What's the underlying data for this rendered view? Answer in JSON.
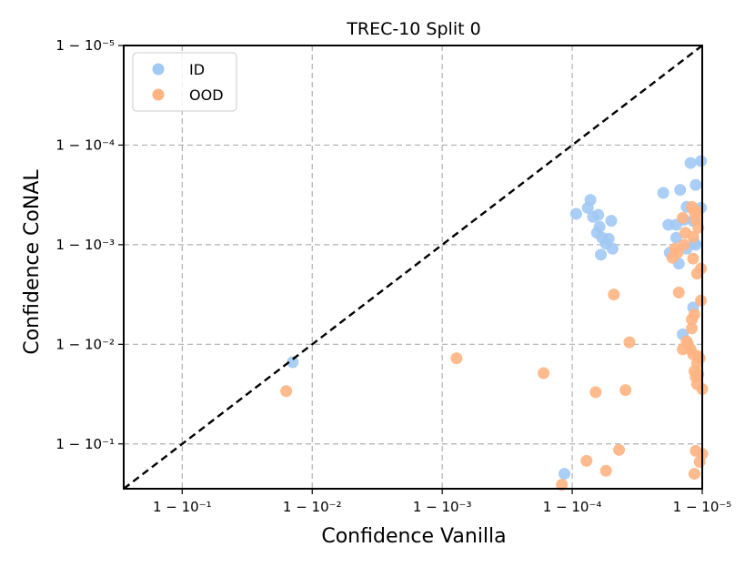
{
  "chart_data": {
    "type": "scatter",
    "title": "TREC-10 Split 0",
    "xlabel": "Confidence Vanilla",
    "ylabel": "Confidence CoNAL",
    "axis_scale": "logit (plotted as -log10(1 - confidence))",
    "xlim": [
      0.55,
      5.0
    ],
    "ylim": [
      0.55,
      5.0
    ],
    "x_ticks": [
      {
        "value": 1,
        "label": "1 − 10⁻¹"
      },
      {
        "value": 2,
        "label": "1 − 10⁻²"
      },
      {
        "value": 3,
        "label": "1 − 10⁻³"
      },
      {
        "value": 4,
        "label": "1 − 10⁻⁴"
      },
      {
        "value": 5,
        "label": "1 − 10⁻⁵"
      }
    ],
    "y_ticks": [
      {
        "value": 1,
        "label": "1 − 10⁻¹"
      },
      {
        "value": 2,
        "label": "1 − 10⁻²"
      },
      {
        "value": 3,
        "label": "1 − 10⁻³"
      },
      {
        "value": 4,
        "label": "1 − 10⁻⁴"
      },
      {
        "value": 5,
        "label": "1 − 10⁻⁵"
      }
    ],
    "grid": true,
    "diagonal": "y = x (dashed black)",
    "legend_position": "top-left",
    "series": [
      {
        "name": "ID",
        "color": "#a1c9f4",
        "points": [
          [
            1.85,
            1.82
          ],
          [
            3.94,
            0.7
          ],
          [
            4.91,
            3.82
          ],
          [
            4.99,
            3.84
          ],
          [
            4.7,
            3.52
          ],
          [
            4.83,
            3.55
          ],
          [
            4.88,
            3.38
          ],
          [
            4.99,
            3.37
          ],
          [
            4.74,
            3.2
          ],
          [
            4.8,
            3.2
          ],
          [
            4.8,
            3.07
          ],
          [
            4.86,
            3.25
          ],
          [
            4.95,
            3.6
          ],
          [
            4.93,
            3.24
          ],
          [
            4.94,
            3.02
          ],
          [
            4.95,
            3.0
          ],
          [
            4.88,
            2.96
          ],
          [
            4.75,
            2.92
          ],
          [
            4.82,
            2.81
          ],
          [
            4.93,
            2.37
          ],
          [
            4.85,
            2.1
          ],
          [
            4.03,
            3.31
          ],
          [
            4.12,
            3.37
          ],
          [
            4.14,
            3.45
          ],
          [
            4.16,
            3.28
          ],
          [
            4.19,
            3.12
          ],
          [
            4.2,
            3.3
          ],
          [
            4.21,
            3.18
          ],
          [
            4.22,
            2.9
          ],
          [
            4.23,
            3.07
          ],
          [
            4.26,
            3.01
          ],
          [
            4.28,
            3.06
          ],
          [
            4.3,
            3.24
          ],
          [
            4.31,
            2.96
          ]
        ]
      },
      {
        "name": "OOD",
        "color": "#ffb482",
        "points": [
          [
            1.8,
            1.53
          ],
          [
            3.11,
            1.86
          ],
          [
            3.78,
            1.71
          ],
          [
            3.92,
            0.59
          ],
          [
            4.11,
            0.83
          ],
          [
            4.18,
            1.52
          ],
          [
            4.26,
            0.73
          ],
          [
            4.32,
            2.5
          ],
          [
            4.36,
            0.94
          ],
          [
            4.41,
            1.54
          ],
          [
            4.44,
            2.02
          ],
          [
            4.77,
            2.87
          ],
          [
            4.79,
            2.96
          ],
          [
            4.81,
            2.92
          ],
          [
            4.85,
            3.27
          ],
          [
            4.86,
            3.0
          ],
          [
            4.87,
            3.12
          ],
          [
            4.92,
            3.38
          ],
          [
            4.93,
            3.08
          ],
          [
            4.94,
            3.33
          ],
          [
            4.95,
            3.25
          ],
          [
            4.96,
            3.33
          ],
          [
            4.97,
            3.17
          ],
          [
            4.93,
            2.86
          ],
          [
            4.96,
            2.71
          ],
          [
            4.99,
            2.76
          ],
          [
            4.99,
            2.44
          ],
          [
            4.94,
            2.3
          ],
          [
            4.89,
            2.0
          ],
          [
            4.91,
            1.95
          ],
          [
            4.96,
            1.81
          ],
          [
            4.94,
            1.73
          ],
          [
            4.98,
            1.86
          ],
          [
            4.95,
            1.67
          ],
          [
            4.96,
            1.6
          ],
          [
            5.0,
            1.55
          ],
          [
            4.97,
            1.88
          ],
          [
            4.92,
            2.16
          ],
          [
            4.93,
            1.9
          ],
          [
            4.97,
            1.7
          ],
          [
            4.95,
            0.93
          ],
          [
            4.98,
            0.82
          ],
          [
            4.94,
            0.7
          ],
          [
            5.0,
            0.9
          ],
          [
            4.88,
            2.03
          ],
          [
            4.82,
            2.52
          ],
          [
            4.92,
            2.25
          ],
          [
            4.85,
            1.95
          ]
        ]
      }
    ]
  }
}
